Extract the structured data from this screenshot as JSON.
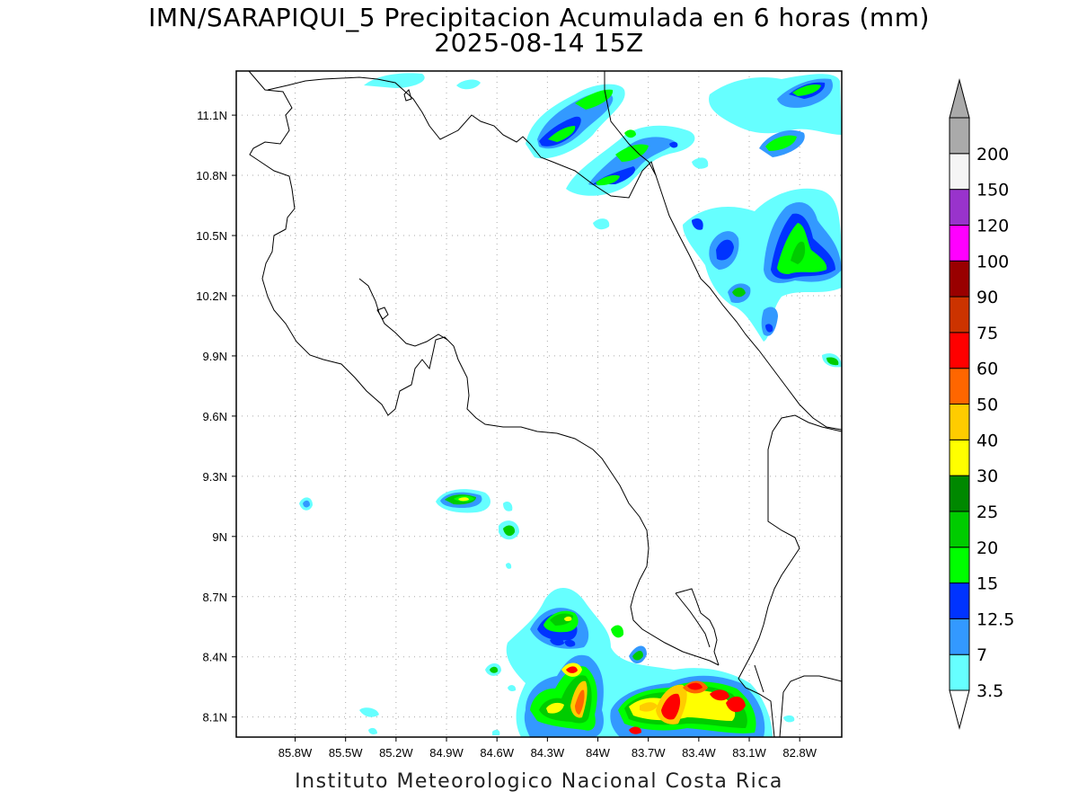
{
  "title": {
    "line1": "IMN/SARAPIQUI_5 Precipitacion Acumulada en 6 horas (mm)",
    "line2": "2025-08-14 15Z"
  },
  "footer": "Instituto Meteorologico Nacional Costa Rica",
  "map": {
    "lon_range": [
      -86.15,
      -82.55
    ],
    "lat_range": [
      8.0,
      11.32
    ],
    "lon_ticks": [
      {
        "v": -85.8,
        "label": "85.8W"
      },
      {
        "v": -85.5,
        "label": "85.5W"
      },
      {
        "v": -85.2,
        "label": "85.2W"
      },
      {
        "v": -84.9,
        "label": "84.9W"
      },
      {
        "v": -84.6,
        "label": "84.6W"
      },
      {
        "v": -84.3,
        "label": "84.3W"
      },
      {
        "v": -84.0,
        "label": "84W"
      },
      {
        "v": -83.7,
        "label": "83.7W"
      },
      {
        "v": -83.4,
        "label": "83.4W"
      },
      {
        "v": -83.1,
        "label": "83.1W"
      },
      {
        "v": -82.8,
        "label": "82.8W"
      }
    ],
    "lat_ticks": [
      {
        "v": 11.1,
        "label": "11.1N"
      },
      {
        "v": 10.8,
        "label": "10.8N"
      },
      {
        "v": 10.5,
        "label": "10.5N"
      },
      {
        "v": 10.2,
        "label": "10.2N"
      },
      {
        "v": 9.9,
        "label": "9.9N"
      },
      {
        "v": 9.6,
        "label": "9.6N"
      },
      {
        "v": 9.3,
        "label": "9.3N"
      },
      {
        "v": 9.0,
        "label": "9N"
      },
      {
        "v": 8.7,
        "label": "8.7N"
      },
      {
        "v": 8.4,
        "label": "8.4N"
      },
      {
        "v": 8.1,
        "label": "8.1N"
      }
    ],
    "grid": true
  },
  "colorbar": {
    "levels": [
      {
        "label": "3.5",
        "color": "#66ffff"
      },
      {
        "label": "7",
        "color": "#3399ff"
      },
      {
        "label": "12.5",
        "color": "#0033ff"
      },
      {
        "label": "15",
        "color": "#00ff00"
      },
      {
        "label": "20",
        "color": "#00cc00"
      },
      {
        "label": "25",
        "color": "#008800"
      },
      {
        "label": "30",
        "color": "#ffff00"
      },
      {
        "label": "40",
        "color": "#ffcc00"
      },
      {
        "label": "50",
        "color": "#ff6600"
      },
      {
        "label": "60",
        "color": "#ff0000"
      },
      {
        "label": "75",
        "color": "#cc3300"
      },
      {
        "label": "90",
        "color": "#990000"
      },
      {
        "label": "100",
        "color": "#ff00ff"
      },
      {
        "label": "120",
        "color": "#9933cc"
      },
      {
        "label": "150",
        "color": "#f5f5f5"
      },
      {
        "label": "200",
        "color": "#aaaaaa"
      }
    ],
    "under_color": "#ffffff",
    "over_color": "#aaaaaa"
  }
}
